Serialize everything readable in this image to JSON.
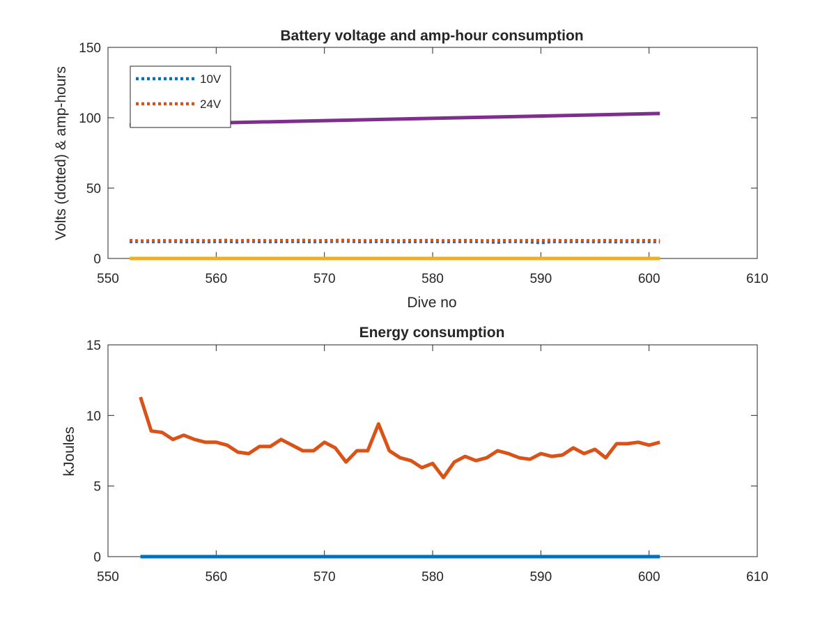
{
  "chart_data": [
    {
      "type": "line",
      "title": "Battery voltage and amp-hour consumption",
      "xlabel": "Dive no",
      "ylabel": "Volts (dotted) & amp-hours",
      "xlim": [
        550,
        610
      ],
      "ylim": [
        0,
        150
      ],
      "xticks": [
        550,
        560,
        570,
        580,
        590,
        600,
        610
      ],
      "yticks": [
        0,
        50,
        100,
        150
      ],
      "grid": false,
      "legend_position": "top-left",
      "series": [
        {
          "name": "10V",
          "style": "dotted",
          "color": "#0072BD",
          "x": [
            552,
            553,
            554,
            555,
            556,
            557,
            558,
            559,
            560,
            561,
            562,
            563,
            564,
            565,
            566,
            567,
            568,
            569,
            570,
            571,
            572,
            573,
            574,
            575,
            576,
            577,
            578,
            579,
            580,
            581,
            582,
            583,
            584,
            585,
            586,
            587,
            588,
            589,
            590,
            591,
            592,
            593,
            594,
            595,
            596,
            597,
            598,
            599,
            600,
            601
          ],
          "y": [
            12,
            12.1,
            11.9,
            12,
            12.2,
            11.8,
            12,
            11.9,
            12,
            12.1,
            11.8,
            12.2,
            12,
            11.9,
            12,
            12.1,
            12,
            11.9,
            12,
            12.2,
            12.3,
            12,
            11.9,
            12.1,
            12,
            11.9,
            12,
            12.1,
            12,
            11.9,
            12,
            12.1,
            12,
            11.9,
            11.5,
            12,
            12,
            11.8,
            11.2,
            12,
            11.9,
            12,
            12,
            11.9,
            12,
            11.8,
            12,
            11.9,
            12,
            11.8
          ]
        },
        {
          "name": "24V",
          "style": "dotted",
          "color": "#D95319",
          "x": [
            552,
            553,
            554,
            555,
            556,
            557,
            558,
            559,
            560,
            561,
            562,
            563,
            564,
            565,
            566,
            567,
            568,
            569,
            570,
            571,
            572,
            573,
            574,
            575,
            576,
            577,
            578,
            579,
            580,
            581,
            582,
            583,
            584,
            585,
            586,
            587,
            588,
            589,
            590,
            591,
            592,
            593,
            594,
            595,
            596,
            597,
            598,
            599,
            600,
            601
          ],
          "y": [
            12.8,
            12.5,
            12.6,
            12.7,
            12.6,
            12.7,
            12.8,
            12.6,
            12.7,
            12.9,
            12.6,
            12.8,
            12.7,
            12.6,
            12.8,
            12.7,
            12.9,
            12.6,
            12.7,
            12.8,
            12.9,
            12.7,
            12.6,
            12.8,
            12.7,
            12.6,
            12.8,
            12.7,
            12.9,
            12.6,
            12.7,
            12.8,
            12.7,
            12.6,
            12.8,
            12.7,
            12.6,
            12.8,
            12.7,
            12.9,
            12.6,
            12.8,
            12.7,
            12.6,
            12.8,
            12.7,
            12.6,
            12.8,
            12.7,
            12.8
          ]
        },
        {
          "style": "solid",
          "color": "#EDB120",
          "x": [
            552,
            601
          ],
          "y": [
            0,
            0
          ]
        },
        {
          "style": "solid",
          "color": "#7E2F8E",
          "x": [
            552,
            601
          ],
          "y": [
            95,
            103
          ]
        }
      ]
    },
    {
      "type": "line",
      "title": "Energy consumption",
      "xlabel": "",
      "ylabel": "kJoules",
      "xlim": [
        550,
        610
      ],
      "ylim": [
        0,
        15
      ],
      "xticks": [
        550,
        560,
        570,
        580,
        590,
        600,
        610
      ],
      "yticks": [
        0,
        5,
        10,
        15
      ],
      "grid": false,
      "series": [
        {
          "style": "solid",
          "color": "#0072BD",
          "x": [
            553,
            601
          ],
          "y": [
            0,
            0
          ]
        },
        {
          "style": "solid",
          "color": "#D95319",
          "x": [
            553,
            554,
            555,
            556,
            557,
            558,
            559,
            560,
            561,
            562,
            563,
            564,
            565,
            566,
            567,
            568,
            569,
            570,
            571,
            572,
            573,
            574,
            575,
            576,
            577,
            578,
            579,
            580,
            581,
            582,
            583,
            584,
            585,
            586,
            587,
            588,
            589,
            590,
            591,
            592,
            593,
            594,
            595,
            596,
            597,
            598,
            599,
            600,
            601
          ],
          "y": [
            11.3,
            8.9,
            8.8,
            8.3,
            8.6,
            8.3,
            8.1,
            8.1,
            7.9,
            7.4,
            7.3,
            7.8,
            7.8,
            8.3,
            7.9,
            7.5,
            7.5,
            8.1,
            7.7,
            6.7,
            7.5,
            7.5,
            9.4,
            7.5,
            7.0,
            6.8,
            6.3,
            6.6,
            5.6,
            6.7,
            7.1,
            6.8,
            7.0,
            7.5,
            7.3,
            7.0,
            6.9,
            7.3,
            7.1,
            7.2,
            7.7,
            7.3,
            7.6,
            7.0,
            8.0,
            8.0,
            8.1,
            7.9,
            8.1
          ]
        }
      ]
    }
  ]
}
